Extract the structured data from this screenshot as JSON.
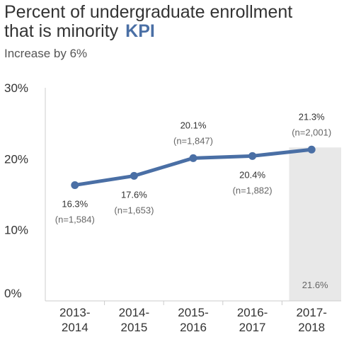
{
  "title": {
    "line1": "Percent of undergraduate enrollment",
    "line2": "that is minority",
    "badge": "KPI"
  },
  "subtitle": "Increase by 6%",
  "colors": {
    "line": "#4a6fa5",
    "badge": "#4a6fa5",
    "target_band": "#e8e8e8",
    "axis": "#cccccc",
    "text": "#333333",
    "muted": "#666666"
  },
  "chart_data": {
    "type": "line",
    "categories": [
      [
        "2013-",
        "2014"
      ],
      [
        "2014-",
        "2015"
      ],
      [
        "2015-",
        "2016"
      ],
      [
        "2016-",
        "2017"
      ],
      [
        "2017-",
        "2018"
      ]
    ],
    "series": [
      {
        "values": [
          16.3,
          17.6,
          20.1,
          20.4,
          21.3
        ],
        "labels": [
          "16.3%",
          "17.6%",
          "20.1%",
          "20.4%",
          "21.3%"
        ],
        "counts": [
          "(n=1,584)",
          "(n=1,653)",
          "(n=1,847)",
          "(n=1,882)",
          "(n=2,001)"
        ]
      }
    ],
    "target": {
      "category_index": 4,
      "value": 21.6,
      "label": "21.6%"
    },
    "y_ticks": [
      {
        "value": 0,
        "label": "0%"
      },
      {
        "value": 10,
        "label": "10%"
      },
      {
        "value": 20,
        "label": "20%"
      },
      {
        "value": 30,
        "label": "30%"
      }
    ],
    "ylim": [
      0,
      30
    ],
    "grid": false
  }
}
